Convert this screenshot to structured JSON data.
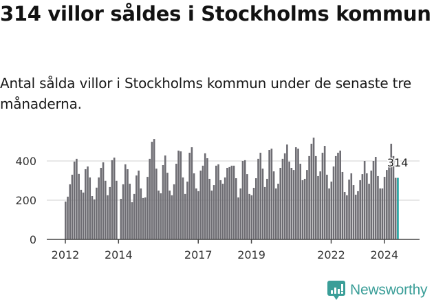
{
  "header": {
    "title": "314 villor såldes i Stockholms kommun",
    "subtitle": "Antal sålda villor i Stockholms kommun under de senaste tre månaderna."
  },
  "logo": {
    "text": "Newsworthy",
    "icon": "newsworthy-bar-chart-speech-bubble-icon",
    "color": "#3a9e98"
  },
  "colors": {
    "bar": "#6e6d73",
    "highlight": "#1fa3a0",
    "grid": "#e0e0e0",
    "axis": "#444444"
  },
  "chart_data": {
    "type": "bar",
    "title": "314 villor såldes i Stockholms kommun",
    "subtitle": "Antal sålda villor i Stockholms kommun under de senaste tre månaderna.",
    "xlabel": "",
    "ylabel": "",
    "ylim": [
      0,
      520
    ],
    "yticks": [
      0,
      200,
      400
    ],
    "xticks": [
      "2012",
      "2014",
      "2017",
      "2019",
      "2022",
      "2024"
    ],
    "grid": true,
    "legend": null,
    "start": "2012-01",
    "frequency": "monthly",
    "highlight_label": "314",
    "values": [
      193,
      218,
      281,
      330,
      397,
      411,
      334,
      253,
      239,
      358,
      372,
      316,
      221,
      204,
      264,
      316,
      365,
      393,
      299,
      225,
      267,
      404,
      417,
      299,
      0,
      207,
      281,
      383,
      358,
      284,
      190,
      232,
      326,
      351,
      260,
      211,
      214,
      319,
      411,
      498,
      512,
      361,
      249,
      235,
      379,
      428,
      340,
      249,
      225,
      281,
      386,
      453,
      449,
      316,
      232,
      295,
      442,
      470,
      337,
      260,
      246,
      351,
      376,
      439,
      414,
      309,
      249,
      277,
      376,
      383,
      302,
      284,
      316,
      365,
      369,
      376,
      376,
      312,
      214,
      260,
      400,
      404,
      333,
      232,
      225,
      263,
      312,
      411,
      442,
      361,
      267,
      309,
      456,
      463,
      347,
      260,
      284,
      365,
      411,
      439,
      484,
      397,
      365,
      354,
      470,
      463,
      386,
      302,
      309,
      354,
      425,
      488,
      519,
      425,
      323,
      347,
      442,
      477,
      330,
      260,
      295,
      372,
      425,
      442,
      453,
      344,
      242,
      225,
      305,
      337,
      277,
      228,
      246,
      302,
      333,
      400,
      337,
      284,
      351,
      400,
      421,
      323,
      260,
      260,
      319,
      354,
      369,
      488,
      425,
      314,
      314
    ]
  }
}
